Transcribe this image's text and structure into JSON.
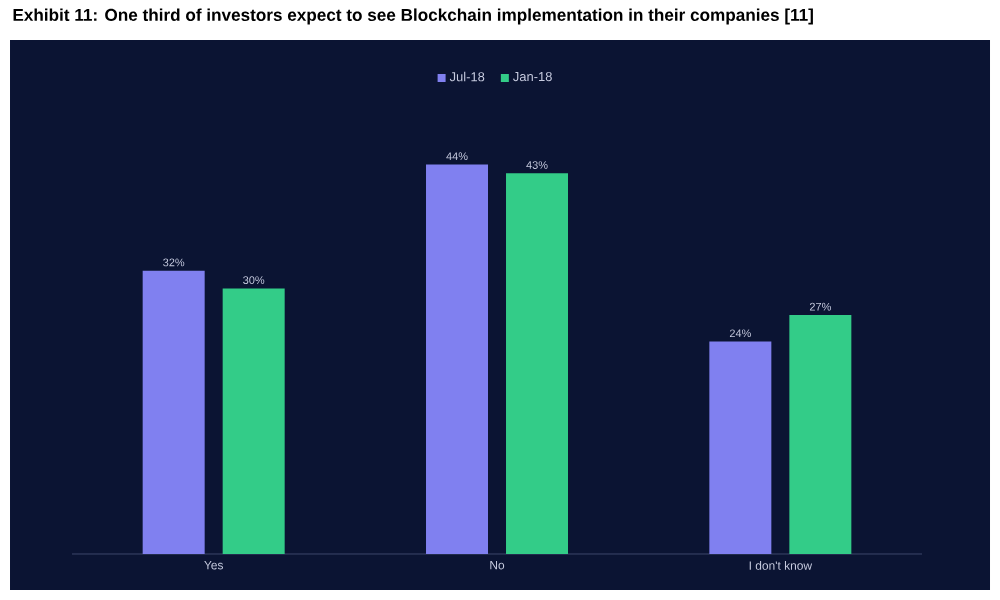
{
  "chart_data": {
    "type": "bar",
    "title": "Exhibit 11: One third of investors expect to see Blockchain implementation in their companies [11]",
    "categories": [
      "Yes",
      "No",
      "I don't know"
    ],
    "series": [
      {
        "name": "Jul-18",
        "color": "#8080f0",
        "values": [
          32,
          44,
          24
        ],
        "value_labels": [
          "32%",
          "44%",
          "24%"
        ]
      },
      {
        "name": "Jan-18",
        "color": "#33cc88",
        "values": [
          30,
          43,
          27
        ],
        "value_labels": [
          "30%",
          "43%",
          "27%"
        ]
      }
    ],
    "legend": "top"
  }
}
